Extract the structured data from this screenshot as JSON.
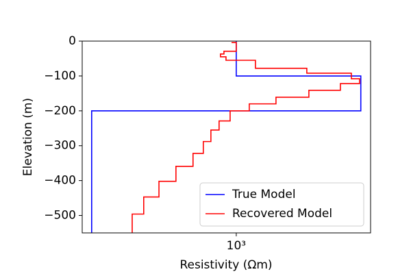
{
  "chart_data": {
    "type": "line",
    "x_label": "Resistivity (Ωm)",
    "y_label": "Elevation (m)",
    "x_log": true,
    "xlim": [
      180,
      4460
    ],
    "ylim": [
      -550,
      0
    ],
    "xticks": [
      {
        "value": 1000,
        "label": "10³"
      }
    ],
    "yticks": [
      0,
      {
        "value": -100,
        "label": "−100"
      },
      {
        "value": -200,
        "label": "−200"
      },
      {
        "value": -300,
        "label": "−300"
      },
      {
        "value": -400,
        "label": "−400"
      },
      {
        "value": -500,
        "label": "−500"
      }
    ],
    "legend": "lower right",
    "series": [
      {
        "name": "True Model",
        "color": "#0000ff",
        "x": [
          1000,
          1000,
          4000,
          4000,
          200,
          200
        ],
        "y": [
          0,
          -100,
          -100,
          -200,
          -200,
          -549
        ]
      },
      {
        "name": "Recovered Model",
        "color": "#ff0000",
        "x": [
          949,
          1000,
          1000,
          872,
          872,
          839,
          839,
          892,
          892,
          1238,
          1238,
          2193,
          2193,
          3600,
          3600,
          3945,
          3945,
          3187,
          3187,
          2244,
          2244,
          1556,
          1556,
          1156,
          1156,
          934,
          934,
          826,
          826,
          754,
          754,
          693,
          693,
          618,
          618,
          511,
          511,
          423,
          423,
          357,
          357,
          314,
          314
        ],
        "y": [
          -4,
          -4,
          -29,
          -29,
          -37,
          -37,
          -45,
          -45,
          -55,
          -55,
          -78,
          -78,
          -92,
          -92,
          -108,
          -108,
          -122,
          -122,
          -141,
          -141,
          -161,
          -161,
          -180,
          -180,
          -200,
          -200,
          -229,
          -229,
          -255,
          -255,
          -288,
          -288,
          -322,
          -322,
          -359,
          -359,
          -402,
          -402,
          -447,
          -447,
          -496,
          -496,
          -549
        ]
      }
    ]
  }
}
